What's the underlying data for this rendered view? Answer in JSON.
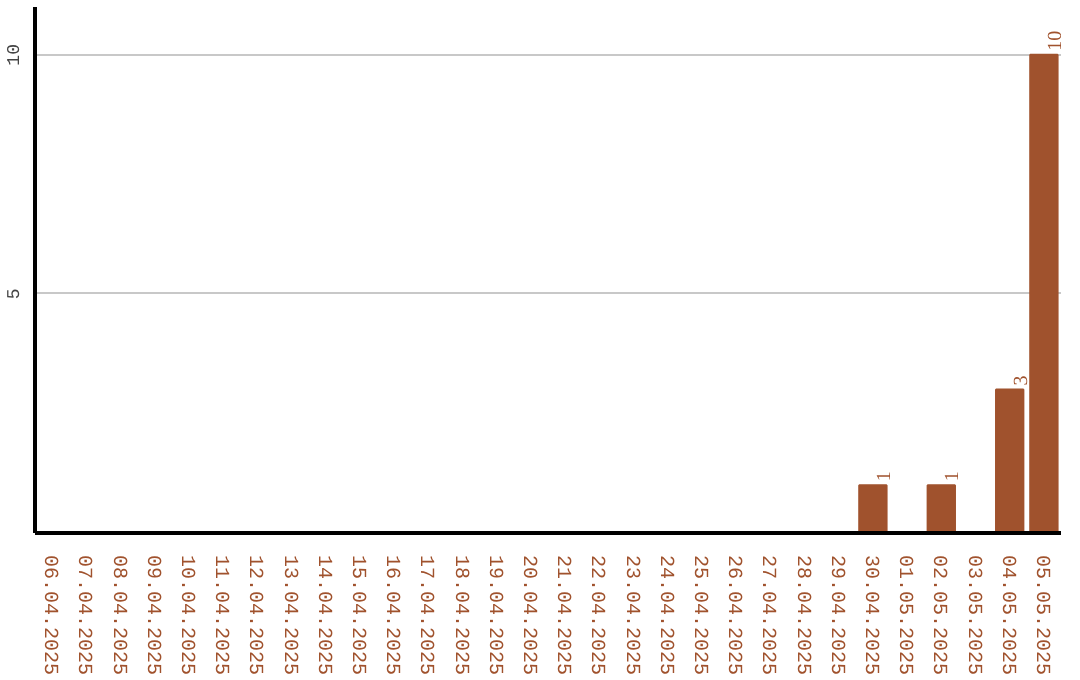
{
  "chart_data": {
    "type": "bar",
    "categories": [
      "06.04.2025",
      "07.04.2025",
      "08.04.2025",
      "09.04.2025",
      "10.04.2025",
      "11.04.2025",
      "12.04.2025",
      "13.04.2025",
      "14.04.2025",
      "15.04.2025",
      "16.04.2025",
      "17.04.2025",
      "18.04.2025",
      "19.04.2025",
      "20.04.2025",
      "21.04.2025",
      "22.04.2025",
      "23.04.2025",
      "24.04.2025",
      "25.04.2025",
      "26.04.2025",
      "27.04.2025",
      "28.04.2025",
      "29.04.2025",
      "30.04.2025",
      "01.05.2025",
      "02.05.2025",
      "03.05.2025",
      "04.05.2025",
      "05.05.2025"
    ],
    "values": [
      0,
      0,
      0,
      0,
      0,
      0,
      0,
      0,
      0,
      0,
      0,
      0,
      0,
      0,
      0,
      0,
      0,
      0,
      0,
      0,
      0,
      0,
      0,
      0,
      1,
      0,
      1,
      0,
      3,
      10
    ],
    "value_labels": [
      null,
      null,
      null,
      null,
      null,
      null,
      null,
      null,
      null,
      null,
      null,
      null,
      null,
      null,
      null,
      null,
      null,
      null,
      null,
      null,
      null,
      null,
      null,
      null,
      "1",
      null,
      "1",
      null,
      "3",
      "10"
    ],
    "color": "#a0522d",
    "ylim": [
      0,
      11
    ],
    "yticks": [
      5,
      10
    ],
    "grid": "y"
  }
}
